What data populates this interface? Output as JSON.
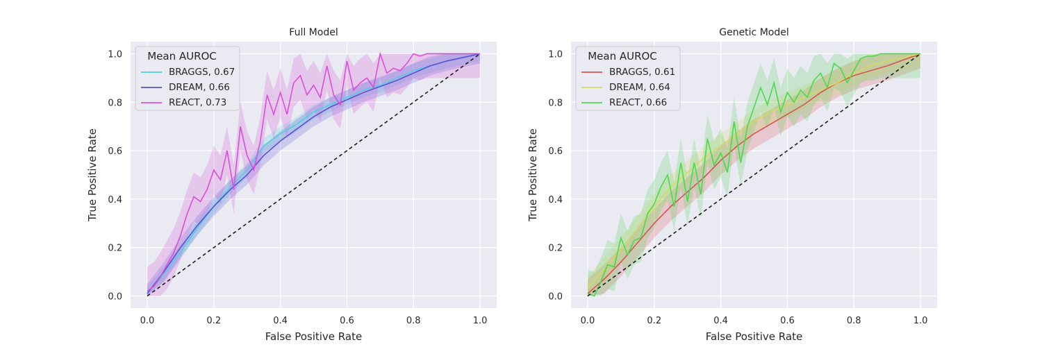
{
  "chart_data": [
    {
      "type": "line",
      "title": "Full Model",
      "xlabel": "False Positive Rate",
      "ylabel": "True Positive Rate",
      "xlim": [
        -0.05,
        1.05
      ],
      "ylim": [
        -0.05,
        1.05
      ],
      "xticks": [
        "0.0",
        "0.2",
        "0.4",
        "0.6",
        "0.8",
        "1.0"
      ],
      "yticks": [
        "0.0",
        "0.2",
        "0.4",
        "0.6",
        "0.8",
        "1.0"
      ],
      "grid": true,
      "legend": {
        "title": "Mean AUROC",
        "placement": "upper-left"
      },
      "series": [
        {
          "name": "BRAGGS, 0.67",
          "color": "#4ecfe0",
          "x": [
            0.0,
            0.05,
            0.1,
            0.15,
            0.2,
            0.25,
            0.3,
            0.35,
            0.4,
            0.45,
            0.5,
            0.55,
            0.6,
            0.65,
            0.7,
            0.75,
            0.8,
            0.85,
            0.9,
            0.95,
            1.0
          ],
          "y": [
            0.01,
            0.09,
            0.18,
            0.28,
            0.37,
            0.45,
            0.52,
            0.62,
            0.67,
            0.71,
            0.76,
            0.79,
            0.82,
            0.85,
            0.87,
            0.9,
            0.93,
            0.95,
            0.97,
            0.985,
            1.0
          ],
          "band": 0.03
        },
        {
          "name": "DREAM, 0.66",
          "color": "#5a50d8",
          "x": [
            0.0,
            0.05,
            0.1,
            0.15,
            0.2,
            0.25,
            0.3,
            0.35,
            0.4,
            0.45,
            0.5,
            0.55,
            0.6,
            0.65,
            0.7,
            0.75,
            0.8,
            0.85,
            0.9,
            0.95,
            1.0
          ],
          "y": [
            0.01,
            0.1,
            0.2,
            0.29,
            0.37,
            0.44,
            0.5,
            0.58,
            0.64,
            0.69,
            0.74,
            0.78,
            0.81,
            0.84,
            0.865,
            0.89,
            0.92,
            0.95,
            0.97,
            0.985,
            1.0
          ],
          "band": 0.04
        },
        {
          "name": "REACT, 0.73",
          "color": "#d94fd8",
          "x": [
            0.0,
            0.02,
            0.04,
            0.06,
            0.08,
            0.1,
            0.12,
            0.14,
            0.16,
            0.18,
            0.2,
            0.22,
            0.24,
            0.26,
            0.28,
            0.3,
            0.32,
            0.34,
            0.36,
            0.38,
            0.4,
            0.42,
            0.44,
            0.46,
            0.48,
            0.5,
            0.52,
            0.54,
            0.56,
            0.58,
            0.6,
            0.62,
            0.64,
            0.66,
            0.68,
            0.7,
            0.72,
            0.74,
            0.76,
            0.78,
            0.8,
            0.82,
            0.84,
            0.86,
            0.88,
            0.9,
            0.92,
            0.94,
            0.96,
            0.98,
            1.0
          ],
          "y": [
            0.02,
            0.04,
            0.08,
            0.13,
            0.18,
            0.25,
            0.34,
            0.41,
            0.39,
            0.44,
            0.52,
            0.48,
            0.6,
            0.44,
            0.7,
            0.58,
            0.52,
            0.64,
            0.83,
            0.75,
            0.84,
            0.75,
            0.88,
            0.91,
            0.83,
            0.87,
            0.82,
            0.95,
            0.83,
            0.79,
            0.97,
            0.85,
            0.88,
            0.9,
            0.86,
            1.0,
            0.92,
            0.94,
            0.93,
            0.96,
            1.0,
            0.99,
            1.0,
            1.0,
            1.0,
            1.0,
            1.0,
            1.0,
            1.0,
            1.0,
            1.0
          ],
          "band": 0.1
        },
        {
          "name": "",
          "color": "#1a1a1a",
          "dashed": true,
          "x": [
            0.0,
            1.0
          ],
          "y": [
            0.0,
            1.0
          ]
        }
      ]
    },
    {
      "type": "line",
      "title": "Genetic Model",
      "xlabel": "False Positive Rate",
      "ylabel": "True Positive Rate",
      "xlim": [
        -0.05,
        1.05
      ],
      "ylim": [
        -0.05,
        1.05
      ],
      "xticks": [
        "0.0",
        "0.2",
        "0.4",
        "0.6",
        "0.8",
        "1.0"
      ],
      "yticks": [
        "0.0",
        "0.2",
        "0.4",
        "0.6",
        "0.8",
        "1.0"
      ],
      "grid": true,
      "legend": {
        "title": "Mean AUROC",
        "placement": "upper-left"
      },
      "series": [
        {
          "name": "BRAGGS, 0.61",
          "color": "#d9534f",
          "x": [
            0.0,
            0.05,
            0.1,
            0.15,
            0.2,
            0.25,
            0.3,
            0.35,
            0.4,
            0.45,
            0.5,
            0.55,
            0.6,
            0.65,
            0.7,
            0.75,
            0.8,
            0.85,
            0.9,
            0.95,
            1.0
          ],
          "y": [
            0.01,
            0.07,
            0.14,
            0.22,
            0.3,
            0.37,
            0.43,
            0.49,
            0.56,
            0.62,
            0.67,
            0.71,
            0.75,
            0.79,
            0.84,
            0.88,
            0.91,
            0.93,
            0.95,
            0.975,
            1.0
          ],
          "band": 0.06
        },
        {
          "name": "DREAM, 0.64",
          "color": "#d8d860",
          "x": [
            0.0,
            0.05,
            0.1,
            0.15,
            0.2,
            0.25,
            0.3,
            0.35,
            0.4,
            0.45,
            0.5,
            0.55,
            0.6,
            0.65,
            0.7,
            0.75,
            0.8,
            0.85,
            0.9,
            0.95,
            1.0
          ],
          "y": [
            0.03,
            0.11,
            0.19,
            0.28,
            0.37,
            0.45,
            0.51,
            0.57,
            0.62,
            0.67,
            0.72,
            0.76,
            0.79,
            0.82,
            0.85,
            0.88,
            0.92,
            0.95,
            0.97,
            0.985,
            1.0
          ],
          "band": 0.05
        },
        {
          "name": "REACT, 0.66",
          "color": "#4cd84c",
          "x": [
            0.0,
            0.02,
            0.04,
            0.06,
            0.08,
            0.1,
            0.12,
            0.14,
            0.16,
            0.18,
            0.2,
            0.22,
            0.24,
            0.26,
            0.28,
            0.3,
            0.32,
            0.34,
            0.36,
            0.38,
            0.4,
            0.42,
            0.44,
            0.46,
            0.48,
            0.5,
            0.52,
            0.54,
            0.56,
            0.58,
            0.6,
            0.62,
            0.64,
            0.66,
            0.68,
            0.7,
            0.72,
            0.74,
            0.76,
            0.78,
            0.8,
            0.82,
            0.84,
            0.86,
            0.88,
            0.9,
            0.92,
            0.94,
            0.96,
            0.98,
            1.0
          ],
          "y": [
            0.01,
            0.0,
            0.06,
            0.13,
            0.12,
            0.24,
            0.17,
            0.23,
            0.24,
            0.34,
            0.38,
            0.45,
            0.5,
            0.37,
            0.55,
            0.39,
            0.55,
            0.42,
            0.65,
            0.54,
            0.59,
            0.51,
            0.72,
            0.55,
            0.7,
            0.78,
            0.86,
            0.79,
            0.88,
            0.76,
            0.84,
            0.8,
            0.85,
            0.82,
            0.89,
            0.92,
            0.86,
            0.96,
            0.94,
            0.88,
            0.93,
            0.98,
            0.99,
            0.99,
            1.0,
            1.0,
            1.0,
            1.0,
            1.0,
            1.0,
            1.0
          ],
          "band": 0.1
        },
        {
          "name": "",
          "color": "#1a1a1a",
          "dashed": true,
          "x": [
            0.0,
            1.0
          ],
          "y": [
            0.0,
            1.0
          ]
        }
      ]
    }
  ]
}
